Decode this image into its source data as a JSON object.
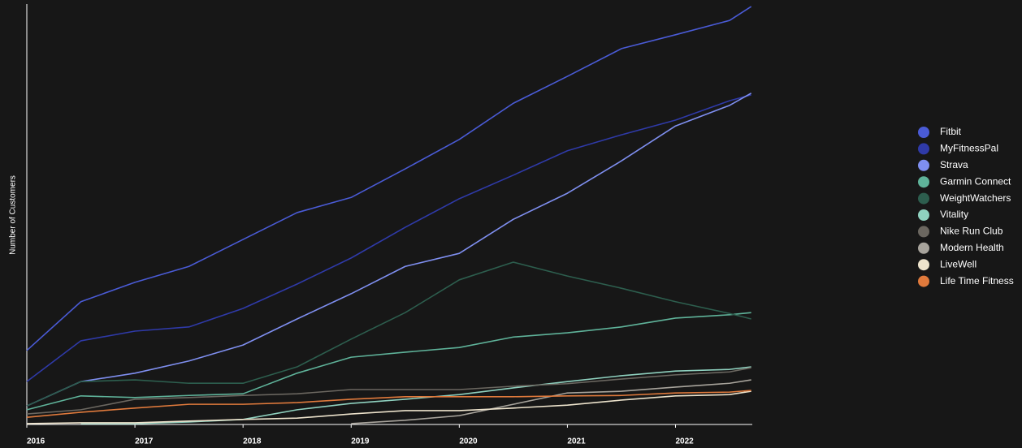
{
  "chart_data": {
    "type": "line",
    "y_label": "Number of Customers",
    "x": [
      2016,
      2016.5,
      2017,
      2017.5,
      2018,
      2018.5,
      2019,
      2019.5,
      2020,
      2020.5,
      2021,
      2021.5,
      2022,
      2022.5,
      2022.7
    ],
    "xlim": [
      2016,
      2022.71
    ],
    "xticks": [
      2016,
      2017,
      2018,
      2019,
      2020,
      2021,
      2022
    ],
    "ylim": [
      0,
      100
    ],
    "legend": "right",
    "series": [
      {
        "name": "Fitbit",
        "color": "#4a5bd6",
        "values": [
          17.6,
          29.2,
          33.8,
          37.6,
          44,
          50.4,
          54,
          60.8,
          67.8,
          76.4,
          82.8,
          89.4,
          92.7,
          96.1,
          99.4
        ]
      },
      {
        "name": "MyFitnessPal",
        "color": "#2f3aa8",
        "values": [
          10.2,
          19.9,
          22.2,
          23.2,
          27.6,
          33.4,
          39.6,
          46.9,
          53.7,
          59.3,
          65.1,
          68.9,
          72.4,
          77,
          78.4
        ]
      },
      {
        "name": "Strava",
        "color": "#7f8ff0",
        "values": [
          4.4,
          10.2,
          12.2,
          15.1,
          18.9,
          25.1,
          31.1,
          37.6,
          40.7,
          48.8,
          55,
          62.7,
          71,
          75.9,
          78.8
        ]
      },
      {
        "name": "Garmin Connect",
        "color": "#5fb39a",
        "values": [
          3.5,
          6.8,
          6.4,
          6.9,
          7.3,
          12.2,
          16,
          17.2,
          18.3,
          20.8,
          21.8,
          23.2,
          25.3,
          26.1,
          26.6
        ]
      },
      {
        "name": "WeightWatchers",
        "color": "#2d5e4e",
        "values": [
          4.4,
          10.2,
          10.6,
          9.8,
          9.8,
          13.7,
          20.3,
          26.6,
          34.4,
          38.6,
          35.3,
          32.4,
          29.2,
          26.4,
          25.1
        ]
      },
      {
        "name": "Vitality",
        "color": "#8fd1bf",
        "values": [
          null,
          0.2,
          0.2,
          0.6,
          1.2,
          3.5,
          5,
          6,
          7.1,
          8.7,
          10.2,
          11.6,
          12.7,
          13.1,
          13.7
        ]
      },
      {
        "name": "Nike Run Club",
        "color": "#6b6760",
        "values": [
          2.5,
          3.5,
          6,
          6.4,
          6.9,
          7.3,
          8.3,
          8.3,
          8.3,
          9.1,
          9.7,
          10.8,
          11.8,
          12.5,
          13.5
        ]
      },
      {
        "name": "Modern Health",
        "color": "#a8a49c",
        "values": [
          null,
          null,
          null,
          null,
          null,
          null,
          0.2,
          1,
          2.1,
          4.8,
          7.5,
          7.9,
          8.9,
          9.8,
          10.6
        ]
      },
      {
        "name": "LiveWell",
        "color": "#ede3cc",
        "values": [
          0.2,
          0.4,
          0.4,
          0.8,
          1.2,
          1.5,
          2.5,
          3.3,
          3.3,
          3.9,
          4.6,
          5.8,
          6.8,
          7.1,
          7.9
        ]
      },
      {
        "name": "Life Time Fitness",
        "color": "#e07a3c",
        "values": [
          1.7,
          2.9,
          3.9,
          4.8,
          4.8,
          5.2,
          6,
          6.6,
          6.6,
          6.6,
          6.8,
          6.9,
          7.5,
          7.7,
          8.1
        ]
      }
    ]
  }
}
